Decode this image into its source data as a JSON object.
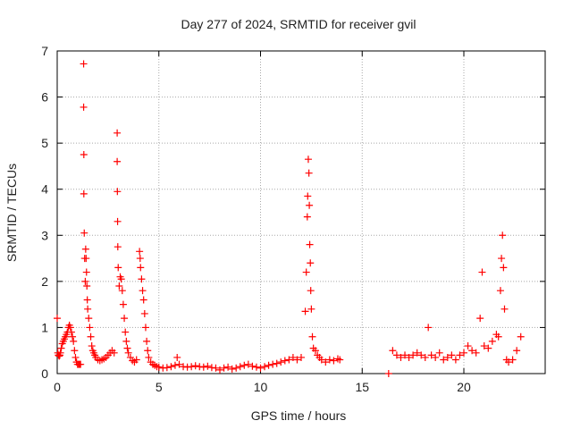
{
  "chart_data": {
    "type": "scatter",
    "title": "Day 277 of 2024, SRMTID for receiver gvil",
    "xlabel": "GPS time / hours",
    "ylabel": "SRMTID / TECUs",
    "xlim": [
      0,
      24
    ],
    "ylim": [
      0,
      7
    ],
    "xticks": [
      0,
      5,
      10,
      15,
      20
    ],
    "yticks": [
      0,
      1,
      2,
      3,
      4,
      5,
      6,
      7
    ],
    "grid": true,
    "marker": "+",
    "series": [
      {
        "name": "SRMTID",
        "color": "#ff0000",
        "points": [
          [
            0.0,
            1.2
          ],
          [
            0.03,
            0.45
          ],
          [
            0.06,
            0.4
          ],
          [
            0.1,
            0.38
          ],
          [
            0.13,
            0.4
          ],
          [
            0.16,
            0.45
          ],
          [
            0.2,
            0.55
          ],
          [
            0.25,
            0.65
          ],
          [
            0.3,
            0.7
          ],
          [
            0.35,
            0.75
          ],
          [
            0.4,
            0.8
          ],
          [
            0.45,
            0.85
          ],
          [
            0.5,
            0.9
          ],
          [
            0.55,
            1.0
          ],
          [
            0.6,
            1.05
          ],
          [
            0.65,
            1.0
          ],
          [
            0.7,
            0.9
          ],
          [
            0.75,
            0.8
          ],
          [
            0.8,
            0.7
          ],
          [
            0.85,
            0.5
          ],
          [
            0.9,
            0.35
          ],
          [
            0.95,
            0.25
          ],
          [
            1.0,
            0.2
          ],
          [
            1.05,
            0.2
          ],
          [
            1.1,
            0.2
          ],
          [
            1.15,
            0.2
          ],
          [
            1.3,
            6.72
          ],
          [
            1.3,
            5.78
          ],
          [
            1.31,
            4.75
          ],
          [
            1.31,
            3.9
          ],
          [
            1.33,
            3.05
          ],
          [
            1.35,
            2.5
          ],
          [
            1.38,
            2.0
          ],
          [
            1.4,
            2.7
          ],
          [
            1.42,
            2.5
          ],
          [
            1.44,
            2.2
          ],
          [
            1.46,
            1.9
          ],
          [
            1.48,
            1.6
          ],
          [
            1.5,
            1.4
          ],
          [
            1.55,
            1.2
          ],
          [
            1.6,
            1.0
          ],
          [
            1.65,
            0.8
          ],
          [
            1.7,
            0.6
          ],
          [
            1.75,
            0.5
          ],
          [
            1.8,
            0.45
          ],
          [
            1.85,
            0.4
          ],
          [
            1.9,
            0.35
          ],
          [
            2.0,
            0.3
          ],
          [
            2.1,
            0.28
          ],
          [
            2.2,
            0.3
          ],
          [
            2.3,
            0.32
          ],
          [
            2.4,
            0.35
          ],
          [
            2.5,
            0.4
          ],
          [
            2.6,
            0.45
          ],
          [
            2.7,
            0.5
          ],
          [
            2.8,
            0.45
          ],
          [
            2.95,
            5.22
          ],
          [
            2.95,
            4.6
          ],
          [
            2.96,
            3.95
          ],
          [
            2.97,
            3.3
          ],
          [
            2.98,
            2.75
          ],
          [
            3.0,
            2.3
          ],
          [
            3.05,
            1.9
          ],
          [
            3.1,
            2.1
          ],
          [
            3.15,
            2.05
          ],
          [
            3.2,
            1.8
          ],
          [
            3.25,
            1.5
          ],
          [
            3.3,
            1.2
          ],
          [
            3.35,
            0.9
          ],
          [
            3.4,
            0.7
          ],
          [
            3.45,
            0.55
          ],
          [
            3.5,
            0.45
          ],
          [
            3.6,
            0.35
          ],
          [
            3.7,
            0.28
          ],
          [
            3.8,
            0.25
          ],
          [
            3.9,
            0.3
          ],
          [
            4.05,
            2.65
          ],
          [
            4.08,
            2.5
          ],
          [
            4.1,
            2.3
          ],
          [
            4.15,
            2.05
          ],
          [
            4.2,
            1.8
          ],
          [
            4.25,
            1.6
          ],
          [
            4.3,
            1.3
          ],
          [
            4.35,
            1.0
          ],
          [
            4.4,
            0.7
          ],
          [
            4.45,
            0.5
          ],
          [
            4.5,
            0.35
          ],
          [
            4.6,
            0.25
          ],
          [
            4.7,
            0.2
          ],
          [
            4.8,
            0.18
          ],
          [
            4.9,
            0.15
          ],
          [
            5.0,
            0.14
          ],
          [
            5.2,
            0.12
          ],
          [
            5.4,
            0.13
          ],
          [
            5.6,
            0.15
          ],
          [
            5.8,
            0.18
          ],
          [
            5.9,
            0.35
          ],
          [
            6.0,
            0.2
          ],
          [
            6.2,
            0.15
          ],
          [
            6.4,
            0.14
          ],
          [
            6.6,
            0.15
          ],
          [
            6.8,
            0.17
          ],
          [
            7.0,
            0.15
          ],
          [
            7.2,
            0.14
          ],
          [
            7.4,
            0.16
          ],
          [
            7.6,
            0.13
          ],
          [
            7.8,
            0.12
          ],
          [
            8.0,
            0.08
          ],
          [
            8.2,
            0.12
          ],
          [
            8.4,
            0.14
          ],
          [
            8.6,
            0.1
          ],
          [
            8.8,
            0.12
          ],
          [
            9.0,
            0.15
          ],
          [
            9.2,
            0.18
          ],
          [
            9.4,
            0.2
          ],
          [
            9.6,
            0.16
          ],
          [
            9.8,
            0.14
          ],
          [
            10.0,
            0.12
          ],
          [
            10.2,
            0.15
          ],
          [
            10.4,
            0.18
          ],
          [
            10.6,
            0.2
          ],
          [
            10.8,
            0.22
          ],
          [
            11.0,
            0.25
          ],
          [
            11.2,
            0.28
          ],
          [
            11.4,
            0.3
          ],
          [
            11.6,
            0.35
          ],
          [
            11.8,
            0.3
          ],
          [
            12.0,
            0.35
          ],
          [
            12.2,
            1.35
          ],
          [
            12.25,
            2.2
          ],
          [
            12.3,
            3.4
          ],
          [
            12.32,
            3.85
          ],
          [
            12.35,
            4.65
          ],
          [
            12.38,
            4.35
          ],
          [
            12.4,
            3.65
          ],
          [
            12.42,
            2.8
          ],
          [
            12.45,
            2.4
          ],
          [
            12.47,
            1.8
          ],
          [
            12.5,
            1.4
          ],
          [
            12.55,
            0.8
          ],
          [
            12.6,
            0.55
          ],
          [
            12.7,
            0.5
          ],
          [
            12.8,
            0.4
          ],
          [
            12.9,
            0.35
          ],
          [
            13.0,
            0.3
          ],
          [
            13.2,
            0.25
          ],
          [
            13.4,
            0.3
          ],
          [
            13.6,
            0.28
          ],
          [
            13.8,
            0.32
          ],
          [
            13.9,
            0.3
          ],
          [
            16.3,
            0.0
          ],
          [
            16.5,
            0.5
          ],
          [
            16.7,
            0.4
          ],
          [
            16.9,
            0.35
          ],
          [
            17.1,
            0.4
          ],
          [
            17.3,
            0.35
          ],
          [
            17.5,
            0.4
          ],
          [
            17.7,
            0.45
          ],
          [
            17.9,
            0.4
          ],
          [
            18.1,
            0.35
          ],
          [
            18.25,
            1.0
          ],
          [
            18.4,
            0.4
          ],
          [
            18.6,
            0.35
          ],
          [
            18.8,
            0.45
          ],
          [
            19.0,
            0.3
          ],
          [
            19.2,
            0.35
          ],
          [
            19.4,
            0.4
          ],
          [
            19.6,
            0.3
          ],
          [
            19.8,
            0.4
          ],
          [
            20.0,
            0.45
          ],
          [
            20.2,
            0.6
          ],
          [
            20.4,
            0.5
          ],
          [
            20.6,
            0.45
          ],
          [
            20.8,
            1.2
          ],
          [
            20.9,
            2.2
          ],
          [
            21.0,
            0.6
          ],
          [
            21.2,
            0.55
          ],
          [
            21.4,
            0.7
          ],
          [
            21.6,
            0.85
          ],
          [
            21.7,
            0.8
          ],
          [
            21.8,
            1.8
          ],
          [
            21.85,
            2.5
          ],
          [
            21.9,
            3.0
          ],
          [
            21.95,
            2.3
          ],
          [
            22.0,
            1.4
          ],
          [
            22.1,
            0.3
          ],
          [
            22.2,
            0.25
          ],
          [
            22.4,
            0.3
          ],
          [
            22.6,
            0.5
          ],
          [
            22.8,
            0.8
          ]
        ]
      }
    ]
  }
}
